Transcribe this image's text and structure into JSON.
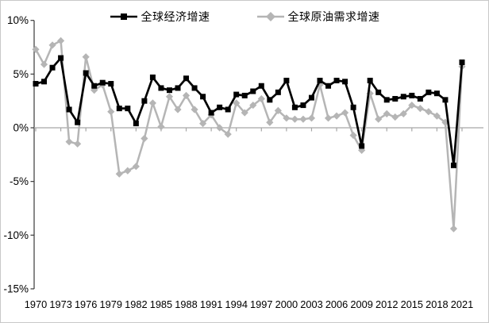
{
  "chart": {
    "legend": [
      {
        "label": "全球经济增速",
        "color": "#000000",
        "marker": "square"
      },
      {
        "label": "全球原油需求增速",
        "color": "#b5b5b5",
        "marker": "diamond"
      }
    ]
  },
  "chart_data": {
    "type": "line",
    "title": "",
    "xlabel": "",
    "ylabel": "",
    "ylim": [
      -15,
      10
    ],
    "y_step": 5,
    "grid": false,
    "legend_position": "top-center",
    "y_tick_labels": [
      "10%",
      "5%",
      "0%",
      "-5%",
      "-10%",
      "-15%"
    ],
    "x": [
      1970,
      1971,
      1972,
      1973,
      1974,
      1975,
      1976,
      1977,
      1978,
      1979,
      1980,
      1981,
      1982,
      1983,
      1984,
      1985,
      1986,
      1987,
      1988,
      1989,
      1990,
      1991,
      1992,
      1993,
      1994,
      1995,
      1996,
      1997,
      1998,
      1999,
      2000,
      2001,
      2002,
      2003,
      2004,
      2005,
      2006,
      2007,
      2008,
      2009,
      2010,
      2011,
      2012,
      2013,
      2014,
      2015,
      2016,
      2017,
      2018,
      2019,
      2020,
      2021
    ],
    "x_tick_labels": [
      "1970",
      "1973",
      "1976",
      "1979",
      "1982",
      "1985",
      "1988",
      "1991",
      "1994",
      "1997",
      "2000",
      "2003",
      "2006",
      "2009",
      "2012",
      "2015",
      "2018",
      "2021"
    ],
    "series": [
      {
        "name": "全球经济增速",
        "color": "#000000",
        "marker": "square",
        "values": [
          4.1,
          4.3,
          5.6,
          6.5,
          1.7,
          0.5,
          5.1,
          3.9,
          4.2,
          4.1,
          1.8,
          1.8,
          0.4,
          2.5,
          4.7,
          3.7,
          3.5,
          3.7,
          4.6,
          3.7,
          2.9,
          1.4,
          1.9,
          1.7,
          3.1,
          3.0,
          3.4,
          3.9,
          2.6,
          3.3,
          4.4,
          1.9,
          2.1,
          2.8,
          4.4,
          3.9,
          4.4,
          4.3,
          1.9,
          -1.7,
          4.4,
          3.3,
          2.6,
          2.7,
          2.9,
          3.0,
          2.7,
          3.3,
          3.2,
          2.6,
          -3.5,
          6.1
        ]
      },
      {
        "name": "全球原油需求增速",
        "color": "#b5b5b5",
        "marker": "diamond",
        "values": [
          7.3,
          5.9,
          7.7,
          8.1,
          -1.3,
          -1.5,
          6.6,
          3.5,
          4.0,
          1.5,
          -4.3,
          -4.0,
          -3.6,
          -1.0,
          2.3,
          0.1,
          2.9,
          1.7,
          3.0,
          1.7,
          0.4,
          1.2,
          0.0,
          -0.6,
          2.3,
          1.4,
          2.1,
          2.7,
          0.5,
          1.6,
          0.9,
          0.8,
          0.8,
          0.9,
          4.0,
          0.9,
          1.1,
          1.4,
          -0.7,
          -2.1,
          3.2,
          0.8,
          1.3,
          1.0,
          1.3,
          2.1,
          1.8,
          1.5,
          1.1,
          0.5,
          -9.4,
          5.7
        ]
      }
    ],
    "colors": {
      "axis": "#3a3a3a",
      "zero_line": "#a6a6a6",
      "tick_text": "#000000"
    }
  }
}
